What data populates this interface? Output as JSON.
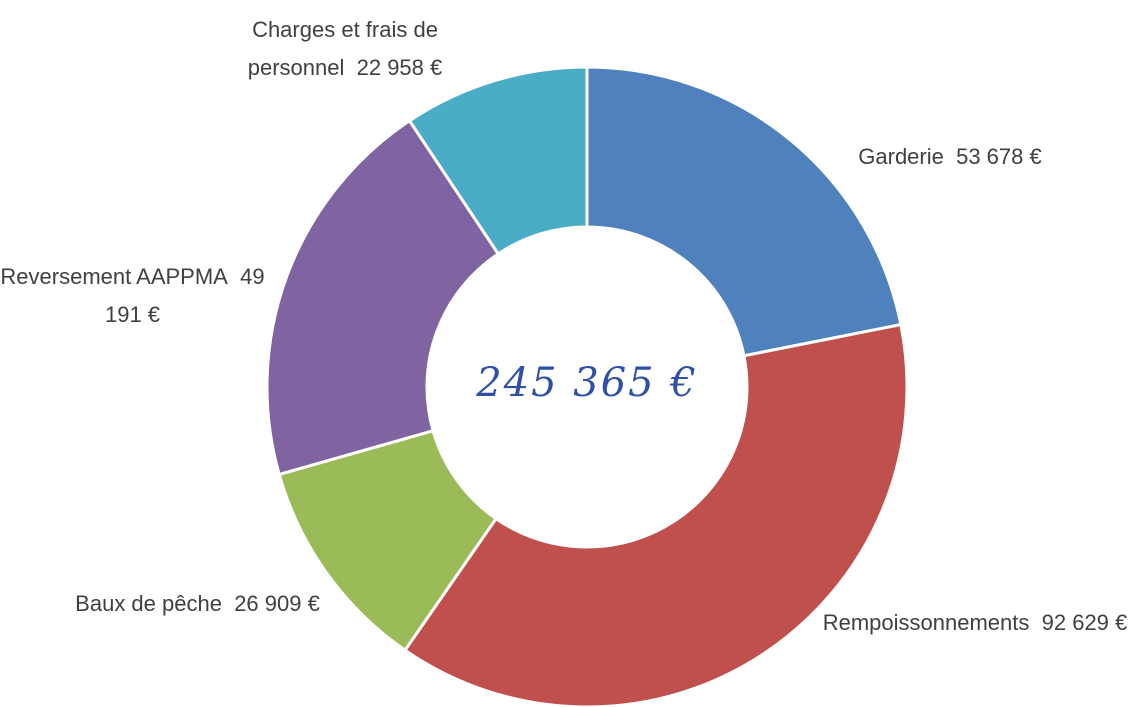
{
  "chart_data": {
    "type": "donut",
    "categories": [
      "Garderie",
      "Rempoissonnements",
      "Baux de pêche",
      "Reversement AAPPMA",
      "Charges et frais de personnel"
    ],
    "values": [
      53678,
      92629,
      26909,
      49191,
      22958
    ],
    "value_labels": [
      "53 678 €",
      "92 629 €",
      "26 909 €",
      "49 191 €",
      "22 958 €"
    ],
    "colors": [
      "#4f81bd",
      "#c0504d",
      "#9bbb59",
      "#8064a2",
      "#4bacc6"
    ],
    "center_label": "245 365 €"
  }
}
